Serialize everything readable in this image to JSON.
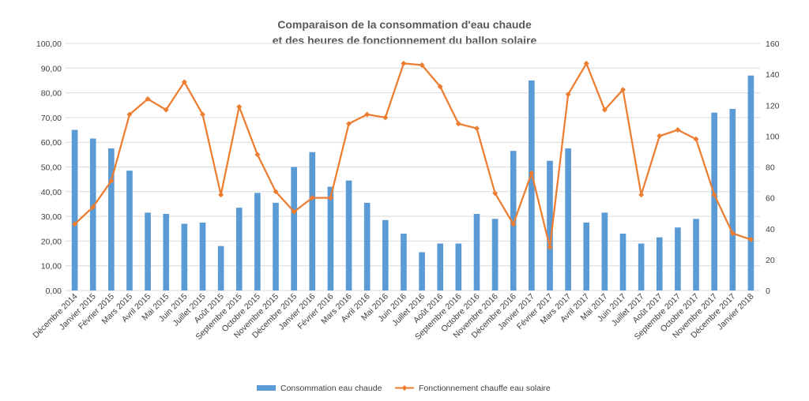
{
  "chart_data": {
    "type": "bar+line",
    "title": [
      "Comparaison de la consommation d'eau chaude",
      "et des heures de fonctionnement du ballon solaire"
    ],
    "categories": [
      "Décembre 2014",
      "Janvier 2015",
      "Février 2015",
      "Mars 2015",
      "Avril 2015",
      "Mai 2015",
      "Juin 2015",
      "Juillet 2015",
      "Août 2015",
      "Septembre 2015",
      "Octobre 2015",
      "Novembre 2015",
      "Décembre 2015",
      "Janvier 2016",
      "Février 2016",
      "Mars 2016",
      "Avril 2016",
      "Mai 2016",
      "Juin 2016",
      "Juillet 2016",
      "Août 2016",
      "Septembre 2016",
      "Octobre 2016",
      "Novembre 2016",
      "Décembre 2016",
      "Janvier 2017",
      "Février 2017",
      "Mars 2017",
      "Avril 2017",
      "Mai 2017",
      "Juin 2017",
      "Juillet 2017",
      "Août 2017",
      "Septembre 2017",
      "Octobre 2017",
      "Novembre 2017",
      "Décembre 2017",
      "Janvier 2018"
    ],
    "series": [
      {
        "name": "Consommation eau chaude",
        "type": "bar",
        "axis": "left",
        "color": "#5b9bd5",
        "values": [
          65,
          61.5,
          57.5,
          48.5,
          31.5,
          31,
          27,
          27.5,
          18,
          33.5,
          39.5,
          35.5,
          50,
          56,
          42,
          44.5,
          35.5,
          28.5,
          23,
          15.5,
          19,
          19,
          31,
          29,
          56.5,
          85,
          52.5,
          57.5,
          27.5,
          31.5,
          23,
          19,
          21.5,
          25.5,
          29,
          72,
          73.5,
          87
        ]
      },
      {
        "name": "Fonctionnement chauffe eau solaire",
        "type": "line",
        "axis": "right",
        "color": "#ed7d31",
        "values": [
          43,
          54,
          71,
          114,
          124,
          117,
          135,
          114,
          62,
          119,
          88,
          64,
          51,
          60,
          60,
          108,
          114,
          112,
          147,
          146,
          132,
          108,
          105,
          63,
          43,
          76,
          28,
          127,
          147,
          117,
          130,
          62,
          100,
          104,
          98,
          62,
          37,
          33
        ]
      }
    ],
    "y_left": {
      "min": 0,
      "max": 100,
      "step": 10,
      "ticks": [
        "0,00",
        "10,00",
        "20,00",
        "30,00",
        "40,00",
        "50,00",
        "60,00",
        "70,00",
        "80,00",
        "90,00",
        "100,00"
      ]
    },
    "y_right": {
      "min": 0,
      "max": 160,
      "step": 20,
      "ticks": [
        "0",
        "20",
        "40",
        "60",
        "80",
        "100",
        "120",
        "140",
        "160"
      ]
    },
    "grid": true,
    "legend": "bottom"
  }
}
